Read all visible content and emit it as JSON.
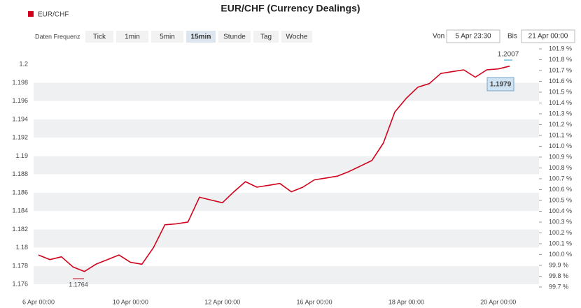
{
  "ui": {
    "frequency_label": "Daten Frequenz",
    "frequencies": [
      "Tick",
      "1min",
      "5min",
      "15min",
      "Stunde",
      "Tag",
      "Woche"
    ],
    "active": "15min",
    "from_label": "Von",
    "from": "5 Apr 23:30",
    "to_label": "Bis",
    "to": "21 Apr 00:00"
  },
  "chart_data": {
    "type": "line",
    "title": "EUR/CHF (Currency Dealings)",
    "categories": [
      "6 Apr 00:00",
      null,
      null,
      null,
      null,
      null,
      null,
      null,
      "10 Apr 00:00",
      null,
      null,
      null,
      null,
      null,
      null,
      null,
      "12 Apr 00:00",
      null,
      null,
      null,
      null,
      null,
      null,
      null,
      "16 Apr 00:00",
      null,
      null,
      null,
      null,
      null,
      null,
      null,
      "18 Apr 00:00",
      null,
      null,
      null,
      null,
      null,
      null,
      null,
      "20 Apr 00:00",
      null,
      null,
      null
    ],
    "series": [
      {
        "name": "EUR/CHF",
        "color": "#d0021b",
        "values": [
          1.1792,
          1.1787,
          1.179,
          1.1779,
          1.1774,
          1.1782,
          1.1787,
          1.1792,
          1.1784,
          1.1782,
          1.18,
          1.1825,
          1.1826,
          1.1828,
          1.1855,
          1.1852,
          1.1849,
          1.1861,
          1.1872,
          1.1866,
          1.1868,
          1.187,
          1.1861,
          1.1866,
          1.1874,
          1.1876,
          1.1878,
          1.1883,
          1.1889,
          1.1895,
          1.1914,
          1.1948,
          1.1963,
          1.1975,
          1.1979,
          1.199,
          1.1992,
          1.1994,
          1.1986,
          1.1994,
          1.1995,
          1.1998,
          null,
          null
        ]
      }
    ],
    "annotations": [
      "1.1764",
      "1.2007",
      "1.1979"
    ],
    "ylim": [
      1.1754,
      1.2026
    ],
    "yticks": [
      1.176,
      1.178,
      1.18,
      1.182,
      1.184,
      1.186,
      1.188,
      1.19,
      1.192,
      1.194,
      1.196,
      1.198,
      1.2
    ],
    "y2lim": [
      99.674,
      101.977
    ],
    "y2ticks": [
      {
        "value": 99.7,
        "label": "99.7 %"
      },
      {
        "value": 99.8,
        "label": "99.8 %"
      },
      {
        "value": 99.9,
        "label": "99.9 %"
      },
      {
        "value": 100.0,
        "label": "100.0 %"
      },
      {
        "value": 100.1,
        "label": "100.1 %"
      },
      {
        "value": 100.2,
        "label": "100.2 %"
      },
      {
        "value": 100.3,
        "label": "100.3 %"
      },
      {
        "value": 100.4,
        "label": "100.4 %"
      },
      {
        "value": 100.5,
        "label": "100.5 %"
      },
      {
        "value": 100.6,
        "label": "100.6 %"
      },
      {
        "value": 100.7,
        "label": "100.7 %"
      },
      {
        "value": 100.8,
        "label": "100.8 %"
      },
      {
        "value": 100.9,
        "label": "100.9 %"
      },
      {
        "value": 101.0,
        "label": "101.0 %"
      },
      {
        "value": 101.1,
        "label": "101.1 %"
      },
      {
        "value": 101.2,
        "label": "101.2 %"
      },
      {
        "value": 101.3,
        "label": "101.3 %"
      },
      {
        "value": 101.4,
        "label": "101.4 %"
      },
      {
        "value": 101.5,
        "label": "101.5 %"
      },
      {
        "value": 101.6,
        "label": "101.6 %"
      },
      {
        "value": 101.7,
        "label": "101.7 %"
      },
      {
        "value": 101.8,
        "label": "101.8 %"
      },
      {
        "value": 101.9,
        "label": "101.9 %"
      }
    ],
    "grid": true
  }
}
